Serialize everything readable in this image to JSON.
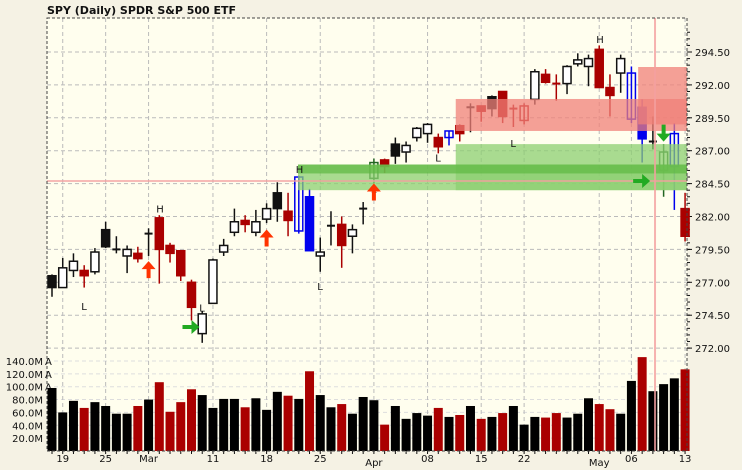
{
  "title": "SPY (Daily)  SPDR S&P 500 ETF",
  "chart_data": {
    "type": "candlestick",
    "title": "SPY (Daily)  SPDR S&P 500 ETF",
    "price_axis": {
      "range": [
        271.0,
        297.0
      ],
      "ticks": [
        "294.50",
        "292.00",
        "289.50",
        "287.00",
        "284.50",
        "282.00",
        "279.50",
        "277.00",
        "274.50",
        "272.00"
      ],
      "tick_values": [
        294.5,
        292.0,
        289.5,
        287.0,
        284.5,
        282.0,
        279.5,
        277.0,
        274.5,
        272.0
      ]
    },
    "volume_axis": {
      "ticks": [
        "140.0M",
        "120.0M",
        "100.0M",
        "80.0M",
        "60.0M",
        "40.0M",
        "20.0M"
      ],
      "tick_values": [
        140,
        120,
        100,
        80,
        60,
        40,
        20
      ],
      "tick_marker": "A"
    },
    "date_ticks": [
      {
        "label": "19",
        "index": 1
      },
      {
        "label": "25",
        "index": 5
      },
      {
        "label": "Mar",
        "index": 9
      },
      {
        "label": "11",
        "index": 15
      },
      {
        "label": "18",
        "index": 20
      },
      {
        "label": "25",
        "index": 25
      },
      {
        "label": "Apr",
        "index": 30
      },
      {
        "label": "08",
        "index": 35
      },
      {
        "label": "15",
        "index": 40
      },
      {
        "label": "22",
        "index": 44
      },
      {
        "label": "May",
        "index": 51
      },
      {
        "label": "06",
        "index": 54
      },
      {
        "label": "13",
        "index": 59
      }
    ],
    "candles_ohlc_style": [
      [
        277.5,
        277.6,
        275.9,
        276.6,
        "b"
      ],
      [
        276.6,
        278.85,
        276.6,
        278.1,
        "h"
      ],
      [
        277.9,
        279.2,
        277.4,
        278.6,
        "h"
      ],
      [
        277.9,
        278.3,
        276.6,
        277.5,
        "r"
      ],
      [
        277.8,
        279.6,
        277.6,
        279.3,
        "h"
      ],
      [
        281.0,
        281.6,
        279.6,
        279.7,
        "b"
      ],
      [
        279.4,
        280.5,
        279.2,
        279.5,
        "h"
      ],
      [
        279.0,
        279.8,
        277.7,
        279.5,
        "h"
      ],
      [
        279.2,
        279.7,
        278.5,
        278.8,
        "r"
      ],
      [
        280.7,
        281.1,
        279.0,
        280.7,
        "x"
      ],
      [
        281.9,
        282.1,
        276.9,
        279.5,
        "r"
      ],
      [
        279.8,
        280.0,
        278.5,
        279.2,
        "r"
      ],
      [
        279.4,
        279.4,
        277.1,
        277.5,
        "r"
      ],
      [
        277.0,
        277.2,
        274.1,
        275.1,
        "r"
      ],
      [
        273.1,
        274.8,
        272.4,
        274.6,
        "h"
      ],
      [
        275.4,
        278.8,
        275.4,
        278.7,
        "h"
      ],
      [
        279.3,
        280.3,
        279.0,
        279.8,
        "h"
      ],
      [
        280.8,
        282.6,
        280.5,
        281.6,
        "h"
      ],
      [
        281.7,
        282.1,
        280.8,
        281.4,
        "r"
      ],
      [
        280.8,
        282.5,
        280.5,
        281.6,
        "h"
      ],
      [
        281.8,
        283.0,
        281.5,
        282.6,
        "h"
      ],
      [
        283.8,
        284.6,
        281.6,
        282.6,
        "b"
      ],
      [
        282.4,
        283.8,
        280.5,
        281.7,
        "r"
      ],
      [
        280.9,
        285.1,
        280.7,
        285.0,
        "blh"
      ],
      [
        283.5,
        284.1,
        279.4,
        279.4,
        "blf"
      ],
      [
        279.0,
        280.4,
        277.8,
        279.3,
        "h"
      ],
      [
        281.3,
        282.4,
        279.8,
        281.3,
        "x"
      ],
      [
        281.4,
        282.0,
        278.1,
        279.8,
        "r"
      ],
      [
        280.5,
        281.4,
        279.2,
        281.0,
        "h"
      ],
      [
        282.6,
        283.1,
        281.4,
        282.6,
        "x"
      ],
      [
        284.9,
        286.4,
        284.5,
        286.1,
        "g"
      ],
      [
        286.3,
        286.4,
        285.3,
        285.8,
        "r"
      ],
      [
        287.5,
        288.0,
        286.0,
        286.6,
        "b"
      ],
      [
        286.9,
        287.7,
        286.1,
        287.4,
        "h"
      ],
      [
        288.0,
        288.8,
        287.7,
        288.7,
        "h"
      ],
      [
        288.3,
        289.1,
        287.6,
        289.0,
        "h"
      ],
      [
        288.0,
        288.3,
        286.8,
        287.3,
        "r"
      ],
      [
        288.0,
        288.5,
        287.4,
        288.5,
        "blh"
      ],
      [
        288.9,
        289.0,
        287.7,
        288.3,
        "r"
      ],
      [
        290.2,
        290.6,
        288.4,
        290.3,
        "h"
      ],
      [
        290.4,
        290.4,
        289.2,
        290.0,
        "r"
      ],
      [
        291.1,
        291.2,
        289.6,
        290.2,
        "b"
      ],
      [
        291.5,
        291.5,
        289.1,
        289.6,
        "r"
      ],
      [
        290.2,
        290.5,
        288.8,
        290.2,
        "rx"
      ],
      [
        289.3,
        290.6,
        289.0,
        290.4,
        "rh"
      ],
      [
        290.9,
        293.2,
        290.5,
        293.0,
        "h"
      ],
      [
        292.8,
        293.2,
        292.1,
        292.2,
        "r"
      ],
      [
        292.1,
        292.8,
        290.8,
        292.1,
        "rx"
      ],
      [
        292.1,
        293.5,
        291.3,
        293.4,
        "h"
      ],
      [
        293.6,
        294.4,
        293.4,
        293.9,
        "h"
      ],
      [
        293.4,
        294.3,
        291.9,
        294.0,
        "h"
      ],
      [
        294.7,
        295.0,
        291.8,
        291.8,
        "r"
      ],
      [
        291.8,
        292.8,
        289.6,
        291.2,
        "r"
      ],
      [
        292.9,
        294.3,
        291.4,
        294.0,
        "h"
      ],
      [
        289.4,
        293.4,
        289.1,
        292.9,
        "blh"
      ],
      [
        290.3,
        290.9,
        286.1,
        287.9,
        "blf"
      ],
      [
        287.7,
        289.6,
        287.1,
        287.7,
        "x"
      ],
      [
        285.5,
        287.5,
        283.5,
        286.9,
        "g"
      ],
      [
        285.8,
        289.1,
        282.5,
        288.3,
        "blh"
      ],
      [
        282.6,
        283.8,
        280.1,
        280.5,
        "r"
      ]
    ],
    "volume_millions": [
      98,
      60,
      78,
      67,
      76,
      70,
      58,
      58,
      70,
      80,
      107,
      61,
      76,
      96,
      87,
      67,
      81,
      81,
      68,
      82,
      64,
      92,
      86,
      81,
      124,
      87,
      68,
      73,
      58,
      84,
      79,
      41,
      70,
      50,
      59,
      55,
      67,
      53,
      56,
      70,
      50,
      53,
      59,
      70,
      41,
      53,
      52,
      59,
      52,
      58,
      82,
      73,
      65,
      58,
      109,
      146,
      93,
      104,
      113,
      127
    ],
    "volume_colors": [
      "k",
      "k",
      "k",
      "r",
      "k",
      "k",
      "k",
      "k",
      "r",
      "k",
      "r",
      "r",
      "r",
      "r",
      "k",
      "k",
      "k",
      "k",
      "r",
      "k",
      "k",
      "k",
      "r",
      "k",
      "r",
      "k",
      "k",
      "r",
      "k",
      "k",
      "k",
      "r",
      "k",
      "k",
      "k",
      "k",
      "r",
      "k",
      "r",
      "k",
      "r",
      "k",
      "r",
      "k",
      "k",
      "k",
      "r",
      "r",
      "k",
      "k",
      "k",
      "r",
      "r",
      "k",
      "k",
      "r",
      "k",
      "k",
      "k",
      "r"
    ],
    "zones": [
      {
        "type": "resistance",
        "start_index": 38,
        "top": 290.93,
        "bottom": 288.5,
        "color": "#f08078"
      },
      {
        "type": "resistance",
        "start_index": 55,
        "top": 293.36,
        "bottom": 289.0,
        "color": "#f08078"
      },
      {
        "type": "support",
        "start_index": 38,
        "top": 287.5,
        "bottom": 284.0,
        "color": "#8ccf70"
      },
      {
        "type": "support",
        "start_index": 23.3,
        "top": 285.95,
        "bottom": 284.0,
        "color": "#8ccf70"
      },
      {
        "type": "support-core",
        "start_index": 23.3,
        "top": 285.95,
        "bottom": 285.27,
        "color": "#5cb840"
      }
    ],
    "markers": [
      {
        "text": "H",
        "index": 10,
        "price": 282.6
      },
      {
        "text": "H",
        "index": 23,
        "price": 285.6
      },
      {
        "text": "H",
        "index": 51,
        "price": 295.5
      },
      {
        "text": "L",
        "index": 3,
        "price": 275.2
      },
      {
        "text": "L",
        "index": 14,
        "price": 275.1
      },
      {
        "text": "L",
        "index": 25,
        "price": 276.7
      },
      {
        "text": "L",
        "index": 30,
        "price": 284.1
      },
      {
        "text": "L",
        "index": 36,
        "price": 286.5
      },
      {
        "text": "L",
        "index": 43,
        "price": 287.6
      }
    ],
    "arrows": [
      {
        "dir": "up",
        "color": "#ff3300",
        "index": 9,
        "price": 278.0
      },
      {
        "dir": "up",
        "color": "#ff3300",
        "index": 20,
        "price": 280.4
      },
      {
        "dir": "up",
        "color": "#ff3300",
        "index": 30,
        "price": 283.9
      },
      {
        "dir": "right",
        "color": "#22aa22",
        "index": 13,
        "price": 273.6
      },
      {
        "dir": "right",
        "color": "#22aa22",
        "index": 55,
        "price": 284.7
      },
      {
        "dir": "down",
        "color": "#22aa22",
        "index": 57,
        "price": 288.3
      }
    ],
    "crosshair": {
      "price": 284.7,
      "index": 56.2
    },
    "colors": {
      "background": "#fffeee",
      "outer": "#f5f2e4",
      "down": "#aa0000",
      "up": "#111111",
      "special": "#0000ee",
      "signal": "#226622",
      "crosshair": "#f4a0a0"
    }
  }
}
